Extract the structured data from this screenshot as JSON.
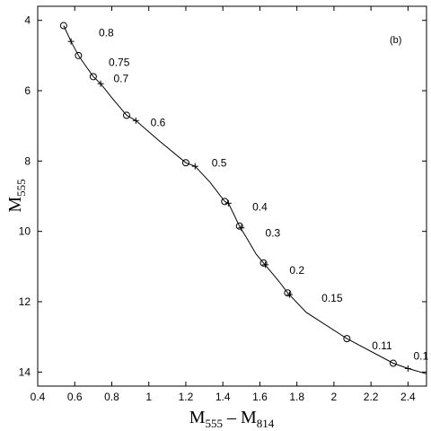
{
  "chart_data": {
    "type": "line",
    "panel_label": "(b)",
    "xlabel": {
      "main": "M",
      "sub1": "555",
      "mid": " – M",
      "sub2": "814"
    },
    "ylabel": {
      "main": "M",
      "sub": "555"
    },
    "xlim": [
      0.4,
      2.5
    ],
    "ylim": [
      14.4,
      3.6
    ],
    "y_inverted": true,
    "grid": false,
    "x_ticks": [
      "0.4",
      "0.6",
      "0.8",
      "1",
      "1.2",
      "1.4",
      "1.6",
      "1.8",
      "2",
      "2.2",
      "2.4"
    ],
    "y_ticks": [
      "4",
      "6",
      "8",
      "10",
      "12",
      "14"
    ],
    "series": [
      {
        "style": "curve",
        "x": [
          0.54,
          0.58,
          0.62,
          0.66,
          0.7,
          0.74,
          0.8,
          0.88,
          0.93,
          1.05,
          1.2,
          1.25,
          1.33,
          1.41,
          1.43,
          1.49,
          1.53,
          1.58,
          1.62,
          1.7,
          1.75,
          1.85,
          2.07,
          2.32,
          2.4,
          2.5
        ],
        "y": [
          4.15,
          4.6,
          5.0,
          5.3,
          5.6,
          5.8,
          6.2,
          6.7,
          6.85,
          7.4,
          8.05,
          8.15,
          8.6,
          9.15,
          9.2,
          9.85,
          10.2,
          10.65,
          10.9,
          11.4,
          11.75,
          12.3,
          13.05,
          13.75,
          13.9,
          14.05
        ]
      },
      {
        "style": "circle-markers",
        "x": [
          0.54,
          0.62,
          0.7,
          0.88,
          1.2,
          1.41,
          1.49,
          1.62,
          1.75,
          2.07,
          2.32
        ],
        "y": [
          4.15,
          5.0,
          5.6,
          6.7,
          8.05,
          9.15,
          9.85,
          10.9,
          11.75,
          13.05,
          13.75
        ]
      },
      {
        "style": "plus-markers",
        "x": [
          0.58,
          0.74,
          0.93,
          1.25,
          1.43,
          1.5,
          1.63,
          1.76,
          2.4
        ],
        "y": [
          4.6,
          5.8,
          6.85,
          8.15,
          9.2,
          9.9,
          10.95,
          11.8,
          13.9
        ]
      }
    ],
    "annotations": [
      {
        "text": "0.8",
        "x": 0.77,
        "y": 4.35
      },
      {
        "text": "0.75",
        "x": 0.84,
        "y": 5.2
      },
      {
        "text": "0.7",
        "x": 0.85,
        "y": 5.65
      },
      {
        "text": "0.6",
        "x": 1.05,
        "y": 6.9
      },
      {
        "text": "0.5",
        "x": 1.38,
        "y": 8.05
      },
      {
        "text": "0.4",
        "x": 1.6,
        "y": 9.3
      },
      {
        "text": "0.3",
        "x": 1.67,
        "y": 10.05
      },
      {
        "text": "0.2",
        "x": 1.8,
        "y": 11.1
      },
      {
        "text": "0.15",
        "x": 1.99,
        "y": 11.9
      },
      {
        "text": "0.11",
        "x": 2.26,
        "y": 13.25
      },
      {
        "text": "0.1",
        "x": 2.47,
        "y": 13.55
      }
    ]
  }
}
